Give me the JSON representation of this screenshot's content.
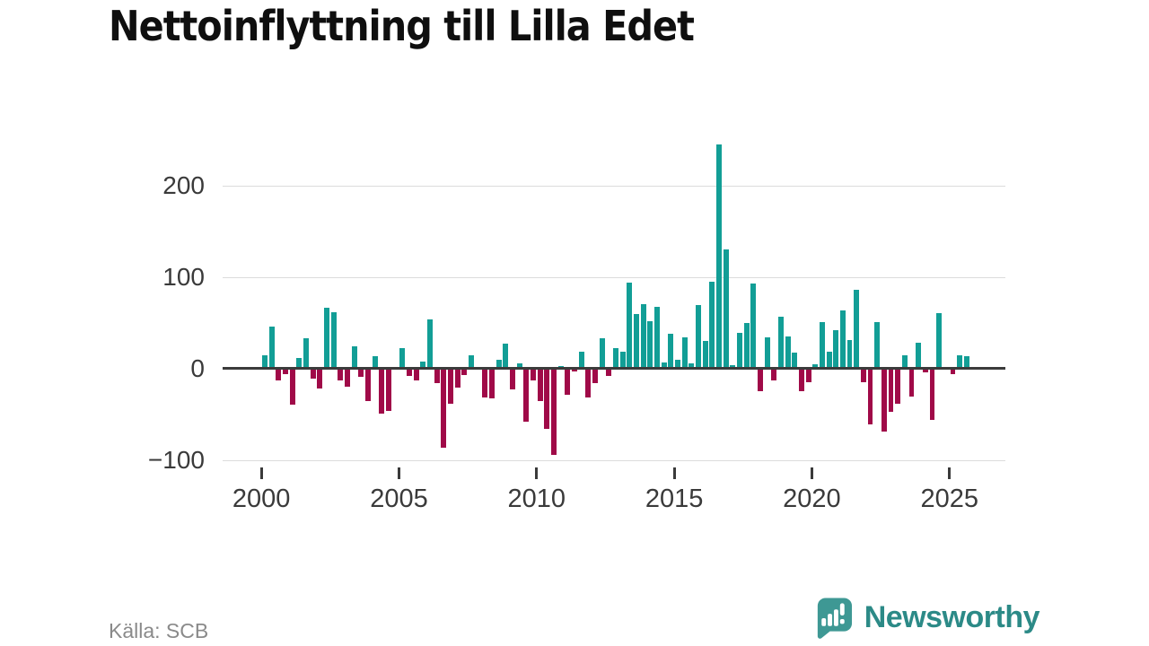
{
  "title": "Nettoinflyttning till Lilla Edet",
  "source": "Källa: SCB",
  "branding": {
    "name": "Newsworthy",
    "icon": "newsworthy-bubble-chart-icon"
  },
  "colors": {
    "positive": "#129e96",
    "negative": "#a00a48",
    "grid": "#dcdcdc",
    "zero_line": "#3b3b3b",
    "axis_text": "#3a3a3a",
    "title_text": "#0f0f0f",
    "source_text": "#8a8a8a",
    "brand_text": "#2c8a87",
    "brand_icon": "#3e9894",
    "background": "#ffffff"
  },
  "chart_data": {
    "type": "bar",
    "title": "Nettoinflyttning till Lilla Edet",
    "xlabel": "",
    "ylabel": "",
    "x_unit": "quarter",
    "grid": "horizontal",
    "legend": "none",
    "ylim": [
      -120,
      265
    ],
    "y_ticks": [
      {
        "label": "200",
        "value": 200
      },
      {
        "label": "100",
        "value": 100
      },
      {
        "label": "0",
        "value": 0
      },
      {
        "label": "−100",
        "value": -100
      }
    ],
    "x_ticks": [
      {
        "label": "2000",
        "year": 2000
      },
      {
        "label": "2005",
        "year": 2005
      },
      {
        "label": "2010",
        "year": 2010
      },
      {
        "label": "2015",
        "year": 2015
      },
      {
        "label": "2020",
        "year": 2020
      },
      {
        "label": "2025",
        "year": 2025
      }
    ],
    "categories": [
      "2000 Q1",
      "2000 Q2",
      "2000 Q3",
      "2000 Q4",
      "2001 Q1",
      "2001 Q2",
      "2001 Q3",
      "2001 Q4",
      "2002 Q1",
      "2002 Q2",
      "2002 Q3",
      "2002 Q4",
      "2003 Q1",
      "2003 Q2",
      "2003 Q3",
      "2003 Q4",
      "2004 Q1",
      "2004 Q2",
      "2004 Q3",
      "2004 Q4",
      "2005 Q1",
      "2005 Q2",
      "2005 Q3",
      "2005 Q4",
      "2006 Q1",
      "2006 Q2",
      "2006 Q3",
      "2006 Q4",
      "2007 Q1",
      "2007 Q2",
      "2007 Q3",
      "2007 Q4",
      "2008 Q1",
      "2008 Q2",
      "2008 Q3",
      "2008 Q4",
      "2009 Q1",
      "2009 Q2",
      "2009 Q3",
      "2009 Q4",
      "2010 Q1",
      "2010 Q2",
      "2010 Q3",
      "2010 Q4",
      "2011 Q1",
      "2011 Q2",
      "2011 Q3",
      "2011 Q4",
      "2012 Q1",
      "2012 Q2",
      "2012 Q3",
      "2012 Q4",
      "2013 Q1",
      "2013 Q2",
      "2013 Q3",
      "2013 Q4",
      "2014 Q1",
      "2014 Q2",
      "2014 Q3",
      "2014 Q4",
      "2015 Q1",
      "2015 Q2",
      "2015 Q3",
      "2015 Q4",
      "2016 Q1",
      "2016 Q2",
      "2016 Q3",
      "2016 Q4",
      "2017 Q1",
      "2017 Q2",
      "2017 Q3",
      "2017 Q4",
      "2018 Q1",
      "2018 Q2",
      "2018 Q3",
      "2018 Q4",
      "2019 Q1",
      "2019 Q2",
      "2019 Q3",
      "2019 Q4",
      "2020 Q1",
      "2020 Q2",
      "2020 Q3",
      "2020 Q4",
      "2021 Q1",
      "2021 Q2",
      "2021 Q3",
      "2021 Q4",
      "2022 Q1",
      "2022 Q2",
      "2022 Q3",
      "2022 Q4",
      "2023 Q1",
      "2023 Q2",
      "2023 Q3",
      "2023 Q4",
      "2024 Q1",
      "2024 Q2",
      "2024 Q3",
      "2024 Q4",
      "2025 Q1",
      "2025 Q2",
      "2025 Q3"
    ],
    "series": [
      {
        "name": "Nettoinflyttning",
        "values": [
          15,
          46,
          -12,
          -5,
          -38,
          12,
          33,
          -10,
          -21,
          67,
          62,
          -12,
          -19,
          25,
          -8,
          -34,
          14,
          -48,
          -45,
          0,
          23,
          -7,
          -12,
          8,
          54,
          -15,
          -85,
          -37,
          -20,
          -6,
          15,
          0,
          -30,
          -31,
          10,
          27,
          -22,
          6,
          -57,
          -12,
          -34,
          -65,
          -93,
          3,
          -27,
          -1,
          19,
          -30,
          -15,
          33,
          -7,
          23,
          19,
          94,
          60,
          71,
          52,
          68,
          7,
          38,
          10,
          34,
          6,
          70,
          30,
          95,
          245,
          130,
          4,
          39,
          50,
          93,
          -24,
          34,
          -12,
          57,
          35,
          18,
          -24,
          -14,
          5,
          51,
          19,
          42,
          64,
          31,
          86,
          -14,
          -60,
          51,
          -68,
          -46,
          -37,
          15,
          -29,
          28,
          -3,
          -55,
          61,
          0,
          -5,
          15,
          14
        ]
      }
    ]
  }
}
